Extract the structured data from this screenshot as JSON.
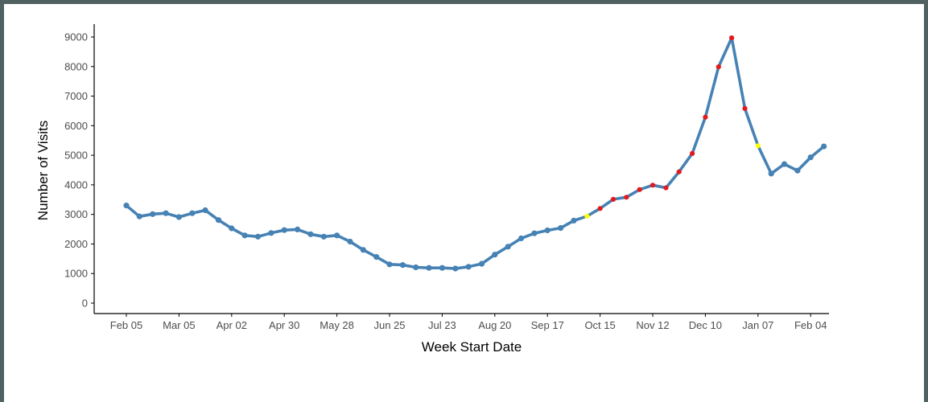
{
  "chart_data": {
    "type": "line",
    "xlabel": "Week Start Date",
    "ylabel": "Number of Visits",
    "ylim": [
      0,
      9000
    ],
    "y_ticks": [
      0,
      1000,
      2000,
      3000,
      4000,
      5000,
      6000,
      7000,
      8000,
      9000
    ],
    "x_ticks": [
      "Feb 05",
      "Mar 05",
      "Apr 02",
      "Apr 30",
      "May 28",
      "Jun 25",
      "Jul 23",
      "Aug 20",
      "Sep 17",
      "Oct 15",
      "Nov 12",
      "Dec 10",
      "Jan 07",
      "Feb 04"
    ],
    "grid": false,
    "line_color": "#4682b4",
    "marker_colors": {
      "default": "#4682b4",
      "highlight_red": "#e31a1c",
      "highlight_yellow": "#ffff00"
    },
    "series": [
      {
        "x": [
          "Feb 05",
          "Feb 12",
          "Feb 19",
          "Feb 26",
          "Mar 05",
          "Mar 12",
          "Mar 19",
          "Mar 26",
          "Apr 02",
          "Apr 09",
          "Apr 16",
          "Apr 23",
          "Apr 30",
          "May 07",
          "May 14",
          "May 21",
          "May 28",
          "Jun 04",
          "Jun 11",
          "Jun 18",
          "Jun 25",
          "Jul 02",
          "Jul 09",
          "Jul 16",
          "Jul 23",
          "Jul 30",
          "Aug 06",
          "Aug 13",
          "Aug 20",
          "Aug 27",
          "Sep 03",
          "Sep 10",
          "Sep 17",
          "Sep 24",
          "Oct 01",
          "Oct 08",
          "Oct 15",
          "Oct 22",
          "Oct 29",
          "Nov 05",
          "Nov 12",
          "Nov 19",
          "Nov 26",
          "Dec 03",
          "Dec 10",
          "Dec 17",
          "Dec 24",
          "Dec 31",
          "Jan 07",
          "Jan 14",
          "Jan 21",
          "Jan 28",
          "Feb 04",
          "Feb 11"
        ],
        "values": [
          3300,
          2930,
          3010,
          3040,
          2910,
          3040,
          3140,
          2810,
          2530,
          2290,
          2250,
          2370,
          2470,
          2490,
          2330,
          2250,
          2290,
          2080,
          1800,
          1560,
          1310,
          1290,
          1210,
          1190,
          1190,
          1170,
          1230,
          1330,
          1640,
          1910,
          2190,
          2360,
          2460,
          2540,
          2790,
          2940,
          3200,
          3510,
          3580,
          3840,
          3990,
          3900,
          4440,
          5060,
          6290,
          7990,
          8970,
          6580,
          5320,
          4380,
          4700,
          4480,
          4930,
          5300
        ],
        "highlight": [
          "none",
          "none",
          "none",
          "none",
          "none",
          "none",
          "none",
          "none",
          "none",
          "none",
          "none",
          "none",
          "none",
          "none",
          "none",
          "none",
          "none",
          "none",
          "none",
          "none",
          "none",
          "none",
          "none",
          "none",
          "none",
          "none",
          "none",
          "none",
          "none",
          "none",
          "none",
          "none",
          "none",
          "none",
          "none",
          "yellow",
          "red",
          "red",
          "red",
          "red",
          "red",
          "red",
          "red",
          "red",
          "red",
          "red",
          "red",
          "red",
          "yellow",
          "none",
          "none",
          "none",
          "none",
          "none"
        ]
      }
    ]
  }
}
